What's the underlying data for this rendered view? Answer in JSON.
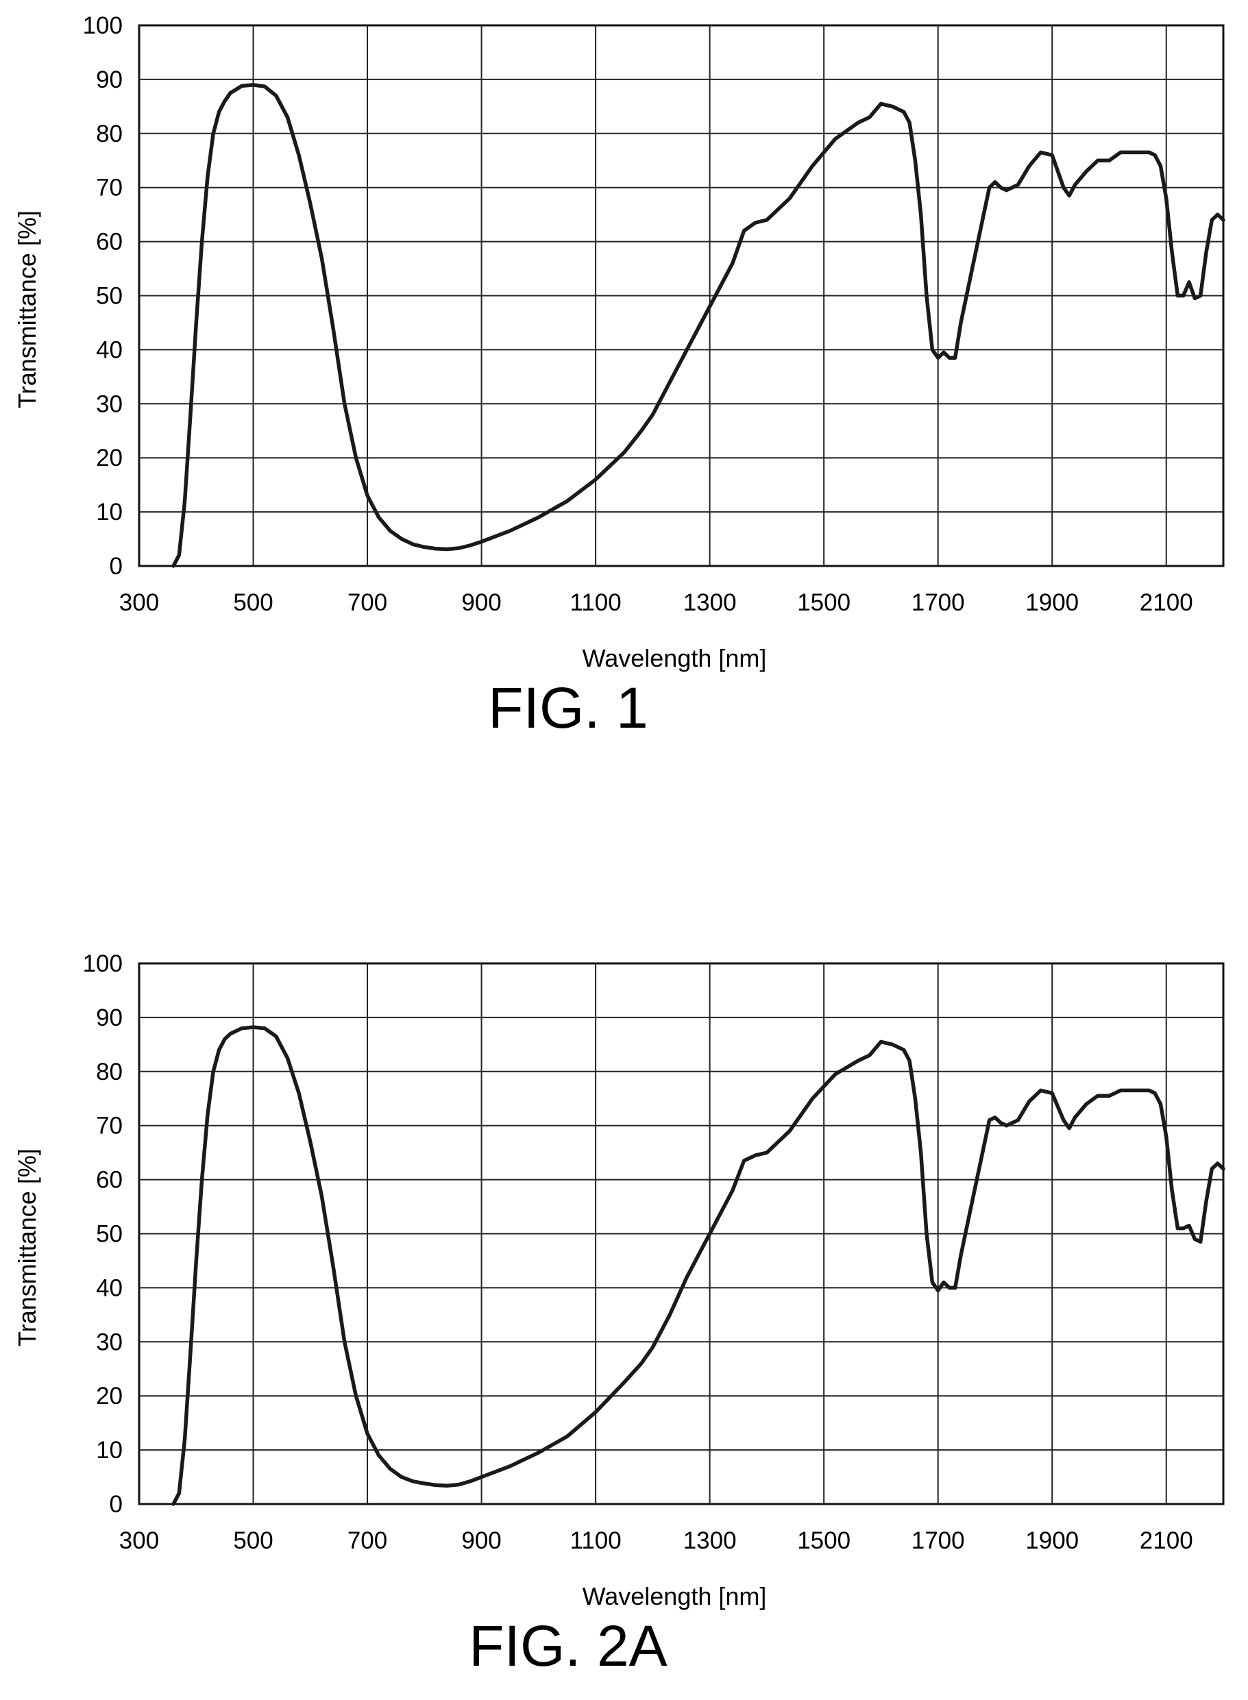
{
  "chart_data": [
    {
      "type": "line",
      "caption": "FIG. 1",
      "xlabel": "Wavelength [nm]",
      "ylabel": "Transmittance [%]",
      "xlim": [
        300,
        2200
      ],
      "ylim": [
        0,
        100
      ],
      "x_ticks": [
        "300",
        "500",
        "700",
        "900",
        "1100",
        "1300",
        "1500",
        "1700",
        "1900",
        "2100"
      ],
      "y_ticks": [
        "0",
        "10",
        "20",
        "30",
        "40",
        "50",
        "60",
        "70",
        "80",
        "90",
        "100"
      ],
      "grid": true,
      "line_color": "#1a1a1a",
      "series": [
        {
          "x": [
            360,
            370,
            380,
            390,
            400,
            410,
            420,
            430,
            440,
            450,
            460,
            480,
            500,
            520,
            540,
            560,
            580,
            600,
            620,
            640,
            660,
            680,
            700,
            720,
            740,
            760,
            780,
            800,
            820,
            840,
            860,
            880,
            900,
            950,
            1000,
            1050,
            1100,
            1150,
            1180,
            1200,
            1230,
            1260,
            1300,
            1340,
            1360,
            1380,
            1400,
            1440,
            1480,
            1520,
            1560,
            1580,
            1600,
            1620,
            1640,
            1650,
            1660,
            1670,
            1680,
            1690,
            1700,
            1710,
            1720,
            1730,
            1740,
            1760,
            1780,
            1790,
            1800,
            1810,
            1820,
            1840,
            1860,
            1880,
            1900,
            1920,
            1930,
            1940,
            1960,
            1980,
            2000,
            2020,
            2040,
            2060,
            2070,
            2080,
            2090,
            2100,
            2110,
            2120,
            2130,
            2140,
            2150,
            2160,
            2170,
            2180,
            2190,
            2200
          ],
          "y": [
            0,
            2,
            12,
            28,
            45,
            60,
            72,
            80,
            84,
            86,
            87.5,
            88.8,
            89,
            88.7,
            87,
            83,
            76,
            67,
            57,
            44,
            30,
            20,
            13,
            9,
            6.5,
            5,
            4,
            3.5,
            3.2,
            3.1,
            3.3,
            3.8,
            4.5,
            6.5,
            9,
            12,
            16,
            21,
            25,
            28,
            34,
            40,
            48,
            56,
            62,
            63.5,
            64,
            68,
            74,
            79,
            82,
            83,
            85.5,
            85,
            84,
            82,
            75,
            65,
            50,
            40,
            38.5,
            39.5,
            38.5,
            38.5,
            45,
            55,
            65,
            70,
            71,
            70,
            69.5,
            70.5,
            74,
            76.5,
            76,
            70,
            68.5,
            70.5,
            73,
            75,
            75,
            76.5,
            76.5,
            76.5,
            76.5,
            76,
            74,
            68,
            58,
            50,
            50,
            52.5,
            49.5,
            50,
            58,
            64,
            65,
            64
          ]
        }
      ]
    },
    {
      "type": "line",
      "caption": "FIG. 2A",
      "xlabel": "Wavelength [nm]",
      "ylabel": "Transmittance [%]",
      "xlim": [
        300,
        2200
      ],
      "ylim": [
        0,
        100
      ],
      "x_ticks": [
        "300",
        "500",
        "700",
        "900",
        "1100",
        "1300",
        "1500",
        "1700",
        "1900",
        "2100"
      ],
      "y_ticks": [
        "0",
        "10",
        "20",
        "30",
        "40",
        "50",
        "60",
        "70",
        "80",
        "90",
        "100"
      ],
      "grid": true,
      "line_color": "#1a1a1a",
      "series": [
        {
          "x": [
            360,
            370,
            380,
            390,
            400,
            410,
            420,
            430,
            440,
            450,
            460,
            480,
            500,
            520,
            540,
            560,
            580,
            600,
            620,
            640,
            660,
            680,
            700,
            720,
            740,
            760,
            780,
            800,
            820,
            840,
            860,
            880,
            900,
            950,
            1000,
            1050,
            1100,
            1150,
            1180,
            1200,
            1230,
            1260,
            1300,
            1340,
            1360,
            1380,
            1400,
            1440,
            1480,
            1520,
            1560,
            1580,
            1600,
            1620,
            1640,
            1650,
            1660,
            1670,
            1680,
            1690,
            1700,
            1710,
            1720,
            1730,
            1740,
            1760,
            1780,
            1790,
            1800,
            1810,
            1820,
            1840,
            1860,
            1880,
            1900,
            1920,
            1930,
            1940,
            1960,
            1980,
            2000,
            2020,
            2040,
            2060,
            2070,
            2080,
            2090,
            2100,
            2110,
            2120,
            2130,
            2140,
            2150,
            2160,
            2170,
            2180,
            2190,
            2200
          ],
          "y": [
            0,
            2,
            12,
            28,
            45,
            60,
            72,
            80,
            84,
            86,
            87,
            88,
            88.2,
            88,
            86.5,
            82.5,
            76,
            67,
            57,
            44,
            30,
            20,
            13,
            9,
            6.5,
            5,
            4.2,
            3.8,
            3.5,
            3.4,
            3.6,
            4.2,
            5,
            7,
            9.5,
            12.5,
            17,
            22.5,
            26,
            29,
            35,
            42,
            50,
            58,
            63.5,
            64.5,
            65,
            69,
            75,
            79.5,
            82,
            83,
            85.5,
            85,
            84,
            82,
            75,
            65,
            50,
            41,
            39.5,
            41,
            40,
            40,
            46,
            56,
            66,
            71,
            71.5,
            70.5,
            70,
            71,
            74.5,
            76.5,
            76,
            71,
            69.5,
            71.5,
            74,
            75.5,
            75.5,
            76.5,
            76.5,
            76.5,
            76.5,
            76,
            74,
            68,
            58,
            51,
            51,
            51.5,
            49,
            48.5,
            56,
            62,
            63,
            62
          ]
        }
      ]
    }
  ]
}
